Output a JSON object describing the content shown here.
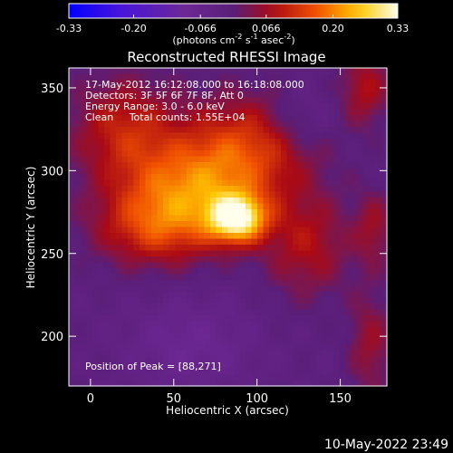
{
  "chart_data": {
    "type": "heatmap",
    "title": "Reconstructed RHESSI Image",
    "xlabel": "Heliocentric X (arcsec)",
    "ylabel": "Heliocentric Y (arcsec)",
    "xlim": [
      -13,
      178
    ],
    "ylim": [
      170,
      362
    ],
    "x_ticks": [
      0,
      50,
      100,
      150
    ],
    "y_ticks": [
      200,
      250,
      300,
      350
    ],
    "colorbar": {
      "min": -0.33,
      "max": 0.33,
      "ticks": [
        "-0.33",
        "-0.20",
        "-0.066",
        "0.066",
        "0.20",
        "0.33"
      ],
      "unit_text": "(photons cm",
      "unit_sup1": "-2",
      "unit_mid": " s",
      "unit_sup2": "-1",
      "unit_mid2": " asec",
      "unit_sup3": "-2",
      "unit_end": ")"
    },
    "annotations": [
      "17-May-2012 16:12:08.000 to 16:18:08.000",
      "Detectors: 3F 5F 6F 7F 8F, Att 0",
      "Energy Range: 3.0 - 6.0 keV",
      "Clean     Total counts: 1.55E+04"
    ],
    "peak_label": "Position of Peak = [88,271]",
    "peak": {
      "x": 88,
      "y": 271,
      "value": 0.33
    },
    "sources": [
      {
        "x": 88,
        "y": 271,
        "amp": 0.3,
        "sx": 12,
        "sy": 10
      },
      {
        "x": 60,
        "y": 290,
        "amp": 0.17,
        "sx": 30,
        "sy": 20
      },
      {
        "x": 40,
        "y": 265,
        "amp": 0.14,
        "sx": 26,
        "sy": 16
      },
      {
        "x": 95,
        "y": 315,
        "amp": 0.14,
        "sx": 28,
        "sy": 22
      },
      {
        "x": 20,
        "y": 325,
        "amp": 0.12,
        "sx": 22,
        "sy": 22
      },
      {
        "x": 130,
        "y": 255,
        "amp": 0.1,
        "sx": 18,
        "sy": 22
      },
      {
        "x": 165,
        "y": 350,
        "amp": 0.1,
        "sx": 10,
        "sy": 16
      },
      {
        "x": 170,
        "y": 265,
        "amp": 0.08,
        "sx": 8,
        "sy": 16
      },
      {
        "x": 168,
        "y": 195,
        "amp": 0.08,
        "sx": 9,
        "sy": 22
      },
      {
        "x": 125,
        "y": 330,
        "amp": -0.06,
        "sx": 14,
        "sy": 14
      },
      {
        "x": 60,
        "y": 195,
        "amp": -0.06,
        "sx": 26,
        "sy": 20
      }
    ]
  },
  "footer": {
    "timestamp": "10-May-2022 23:49"
  }
}
